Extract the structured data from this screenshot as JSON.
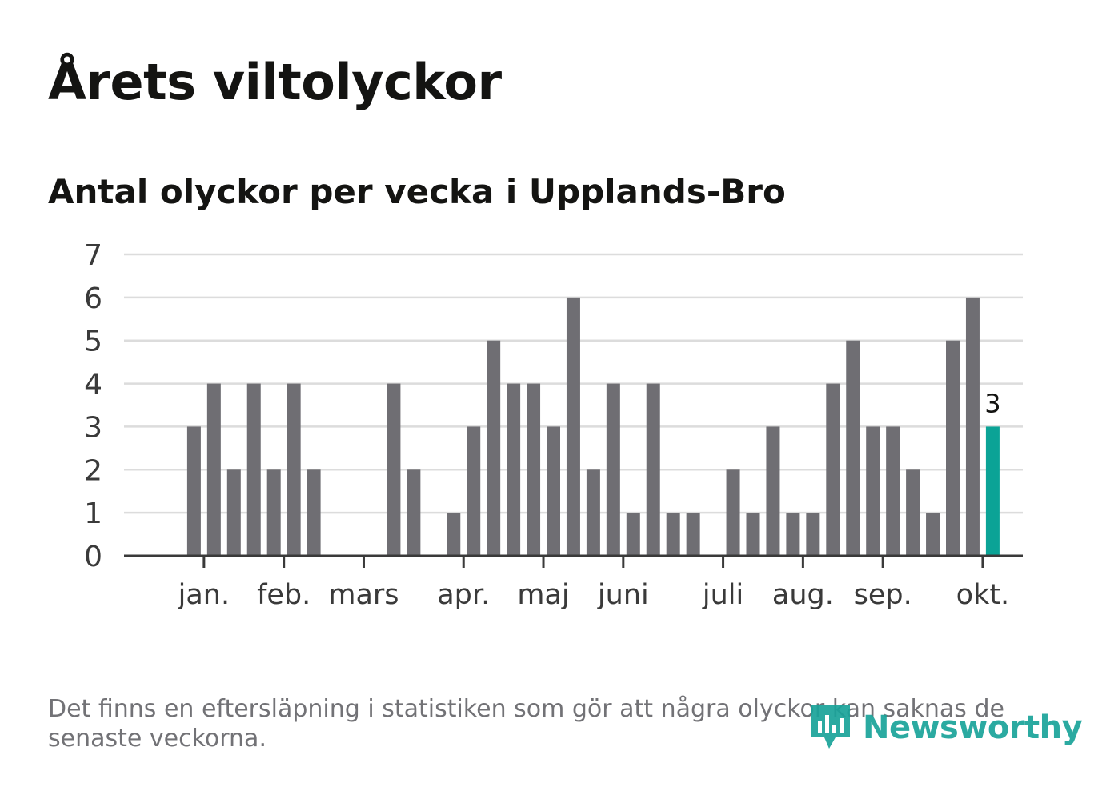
{
  "title": "Årets viltolyckor",
  "subtitle": "Antal olyckor per vecka i Upplands-Bro",
  "footnote": "Det finns en eftersläpning i statistiken som gör att några olyckor kan saknas de senaste veckorna.",
  "brand": "Newsworthy",
  "colors": {
    "bar": "#6f6e73",
    "highlight": "#0ba396",
    "grid": "#dcdcdc",
    "axis": "#3a3a3a",
    "text": "#3a3a3a",
    "brand": "#1aa39a"
  },
  "chart_data": {
    "type": "bar",
    "title": "Antal olyckor per vecka i Upplands-Bro",
    "xlabel": "",
    "ylabel": "",
    "ylim": [
      0,
      7
    ],
    "yticks": [
      0,
      1,
      2,
      3,
      4,
      5,
      6,
      7
    ],
    "grid": true,
    "weeks": [
      1,
      2,
      3,
      4,
      5,
      6,
      7,
      8,
      9,
      10,
      11,
      12,
      13,
      14,
      15,
      16,
      17,
      18,
      19,
      20,
      21,
      22,
      23,
      24,
      25,
      26,
      27,
      28,
      29,
      30,
      31,
      32,
      33,
      34,
      35,
      36,
      37,
      38,
      39,
      40,
      41,
      42,
      43
    ],
    "values": [
      0,
      0,
      3,
      4,
      2,
      4,
      2,
      4,
      2,
      0,
      0,
      0,
      4,
      2,
      0,
      1,
      3,
      5,
      4,
      4,
      3,
      6,
      2,
      4,
      1,
      4,
      1,
      1,
      0,
      2,
      1,
      3,
      1,
      1,
      4,
      5,
      3,
      3,
      2,
      1,
      5,
      6,
      3
    ],
    "highlight_index": 42,
    "highlight_label": "3",
    "month_labels": [
      {
        "label": "jan.",
        "week": 3.5
      },
      {
        "label": "feb.",
        "week": 7.5
      },
      {
        "label": "mars",
        "week": 11.5
      },
      {
        "label": "apr.",
        "week": 16.5
      },
      {
        "label": "maj",
        "week": 20.5
      },
      {
        "label": "juni",
        "week": 24.5
      },
      {
        "label": "juli",
        "week": 29.5
      },
      {
        "label": "aug.",
        "week": 33.5
      },
      {
        "label": "sep.",
        "week": 37.5
      },
      {
        "label": "okt.",
        "week": 42.5
      }
    ]
  }
}
